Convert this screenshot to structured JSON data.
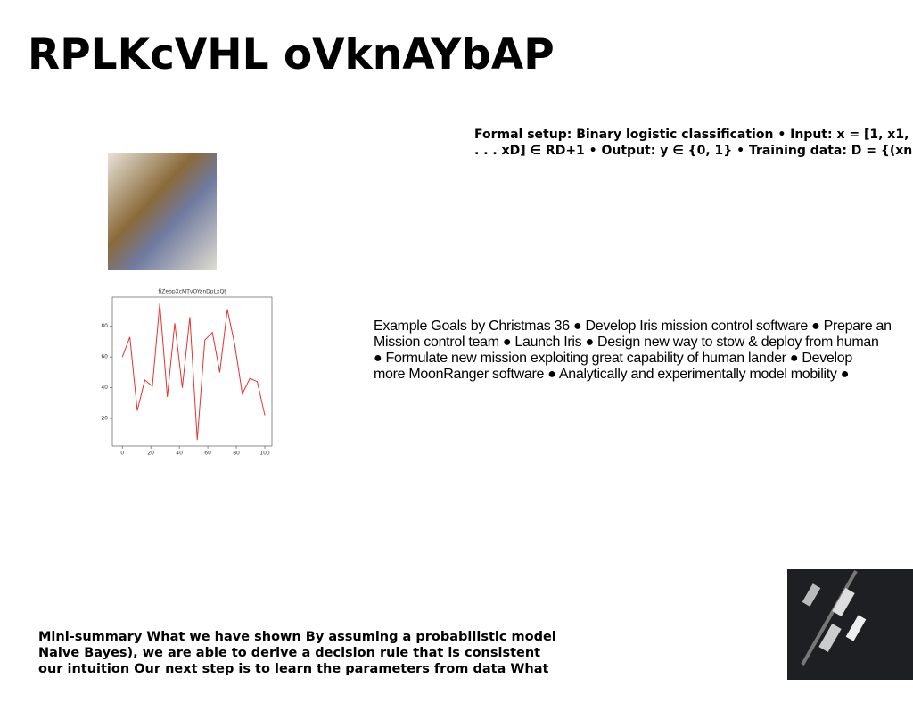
{
  "header": {
    "title": "RPLKcVHL oVknAYbAP"
  },
  "blocks": [
    {
      "lines": [
        "Formal setup: Binary logistic classification • Input: x = [1, x1,",
        ". . . xD] ∈ RD+1 • Output: y ∈ {0, 1} • Training data: D = {(xn,"
      ]
    },
    {
      "lines": [
        "Example Goals by Christmas 36 ● Develop Iris mission control software ● Prepare an",
        "Mission control team ● Launch Iris ● Design new way to stow & deploy from human",
        "● Formulate new mission exploiting great capability of human lander ● Develop",
        "more MoonRanger software ● Analytically and experimentally model mobility ●"
      ]
    },
    {
      "lines": [
        "Mini-summary What we have shown By assuming a probabilistic model",
        "Naive Bayes), we are able to derive a decision rule that is consistent",
        "our intuition Our next step is to learn the parameters from data What"
      ]
    }
  ],
  "chart_data": {
    "type": "line",
    "title": "fiZebpXcMTvOYanDpLxQt",
    "x": [
      0,
      5.3,
      10.5,
      15.8,
      21.1,
      26.3,
      31.6,
      36.8,
      42.1,
      47.4,
      52.6,
      57.9,
      63.2,
      68.4,
      73.7,
      78.9,
      84.2,
      89.5,
      94.7,
      100
    ],
    "series": [
      {
        "color": "#e8312f",
        "values": [
          60,
          73,
          25,
          45,
          41,
          95,
          34,
          82,
          40,
          86,
          6,
          71,
          76,
          50,
          91,
          68,
          36,
          46,
          44,
          22
        ]
      }
    ],
    "xlim": [
      -7,
      105
    ],
    "xticks": [
      0,
      20,
      40,
      60,
      80,
      100
    ],
    "ylim": [
      2,
      99
    ],
    "yticks": [
      20,
      40,
      60,
      80
    ]
  }
}
